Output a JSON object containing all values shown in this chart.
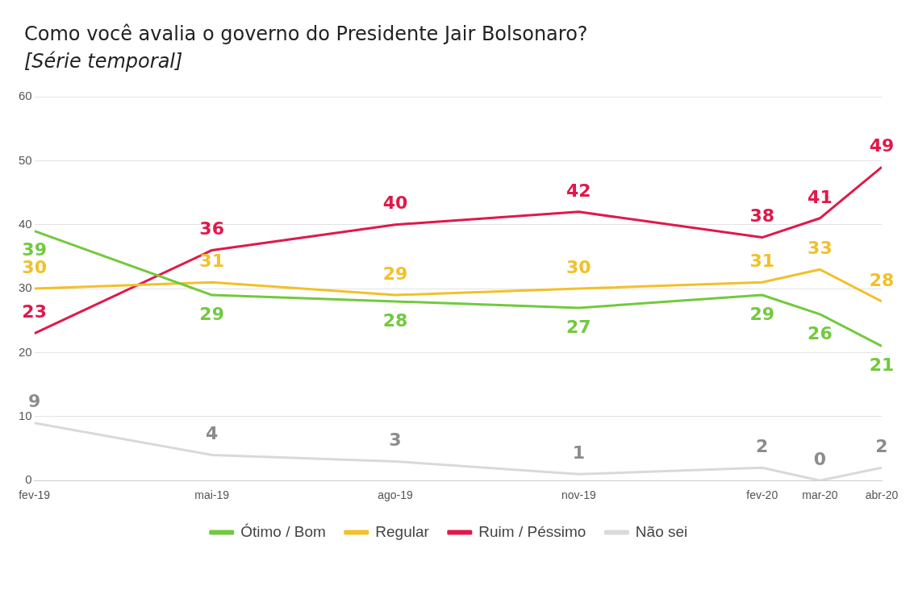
{
  "chart_data": {
    "type": "line",
    "title": "Como você avalia o governo do Presidente Jair Bolsonaro?",
    "subtitle": "[Série temporal]",
    "x": [
      "2019-02",
      "2019-05",
      "2019-08",
      "2019-11",
      "2020-02",
      "2020-03",
      "2020-04"
    ],
    "xlim": [
      "2019-02",
      "2020-04"
    ],
    "xticks": [
      {
        "value": "2019-02",
        "label": "fev-19"
      },
      {
        "value": "2019-05",
        "label": "mai-19"
      },
      {
        "value": "2019-08",
        "label": "ago-19"
      },
      {
        "value": "2019-11",
        "label": "nov-19"
      },
      {
        "value": "2020-02",
        "label": "fev-20"
      },
      {
        "value": "2020-03",
        "label": "mar-20"
      },
      {
        "value": "2020-04",
        "label": "abr-20"
      }
    ],
    "ylim": [
      0,
      60
    ],
    "yticks": [
      0,
      10,
      20,
      30,
      40,
      50,
      60
    ],
    "series": [
      {
        "name": "Ótimo / Bom",
        "color": "#72c93e",
        "values": [
          39,
          29,
          28,
          27,
          29,
          26,
          21
        ]
      },
      {
        "name": "Regular",
        "color": "#f2c029",
        "values": [
          30,
          31,
          29,
          30,
          31,
          33,
          28
        ]
      },
      {
        "name": "Ruim / Péssimo",
        "color": "#e0194a",
        "values": [
          23,
          36,
          40,
          42,
          38,
          41,
          49
        ]
      },
      {
        "name": "Não sei",
        "color": "#d9d9d9",
        "values": [
          9,
          4,
          3,
          1,
          2,
          0,
          2
        ]
      }
    ],
    "data_labels": true,
    "grid": "y",
    "legend": "bottom",
    "marker": "none",
    "line_style": "solid"
  }
}
